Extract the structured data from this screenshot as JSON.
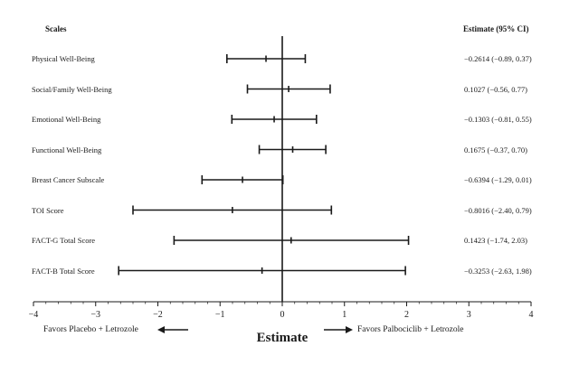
{
  "header": {
    "left": "Scales",
    "right": "Estimate (95% CI)"
  },
  "chart_data": {
    "type": "forest",
    "xlabel": "Estimate",
    "xlim": [
      -4,
      4
    ],
    "xticks": [
      "-4",
      "-3",
      "-2",
      "-1",
      "0",
      "1",
      "2",
      "3",
      "4"
    ],
    "rows": [
      {
        "label": "Physical Well-Being",
        "estimate": -0.2614,
        "lower": -0.89,
        "upper": 0.37,
        "text": "−0.2614 (−0.89, 0.37)"
      },
      {
        "label": "Social/Family Well-Being",
        "estimate": 0.1027,
        "lower": -0.56,
        "upper": 0.77,
        "text": "0.1027 (−0.56, 0.77)"
      },
      {
        "label": "Emotional Well-Being",
        "estimate": -0.1303,
        "lower": -0.81,
        "upper": 0.55,
        "text": "−0.1303 (−0.81, 0.55)"
      },
      {
        "label": "Functional Well-Being",
        "estimate": 0.1675,
        "lower": -0.37,
        "upper": 0.7,
        "text": "0.1675 (−0.37, 0.70)"
      },
      {
        "label": "Breast Cancer Subscale",
        "estimate": -0.6394,
        "lower": -1.29,
        "upper": 0.01,
        "text": "−0.6394 (−1.29, 0.01)"
      },
      {
        "label": "TOI Score",
        "estimate": -0.8016,
        "lower": -2.4,
        "upper": 0.79,
        "text": "−0.8016 (−2.40, 0.79)"
      },
      {
        "label": "FACT-G Total Score",
        "estimate": 0.1423,
        "lower": -1.74,
        "upper": 2.03,
        "text": "0.1423 (−1.74, 2.03)"
      },
      {
        "label": "FACT-B Total Score",
        "estimate": -0.3253,
        "lower": -2.63,
        "upper": 1.98,
        "text": "−0.3253 (−2.63, 1.98)"
      }
    ],
    "favors_left": "Favors Placebo + Letrozole",
    "favors_right": "Favors Palbociclib + Letrozole"
  }
}
